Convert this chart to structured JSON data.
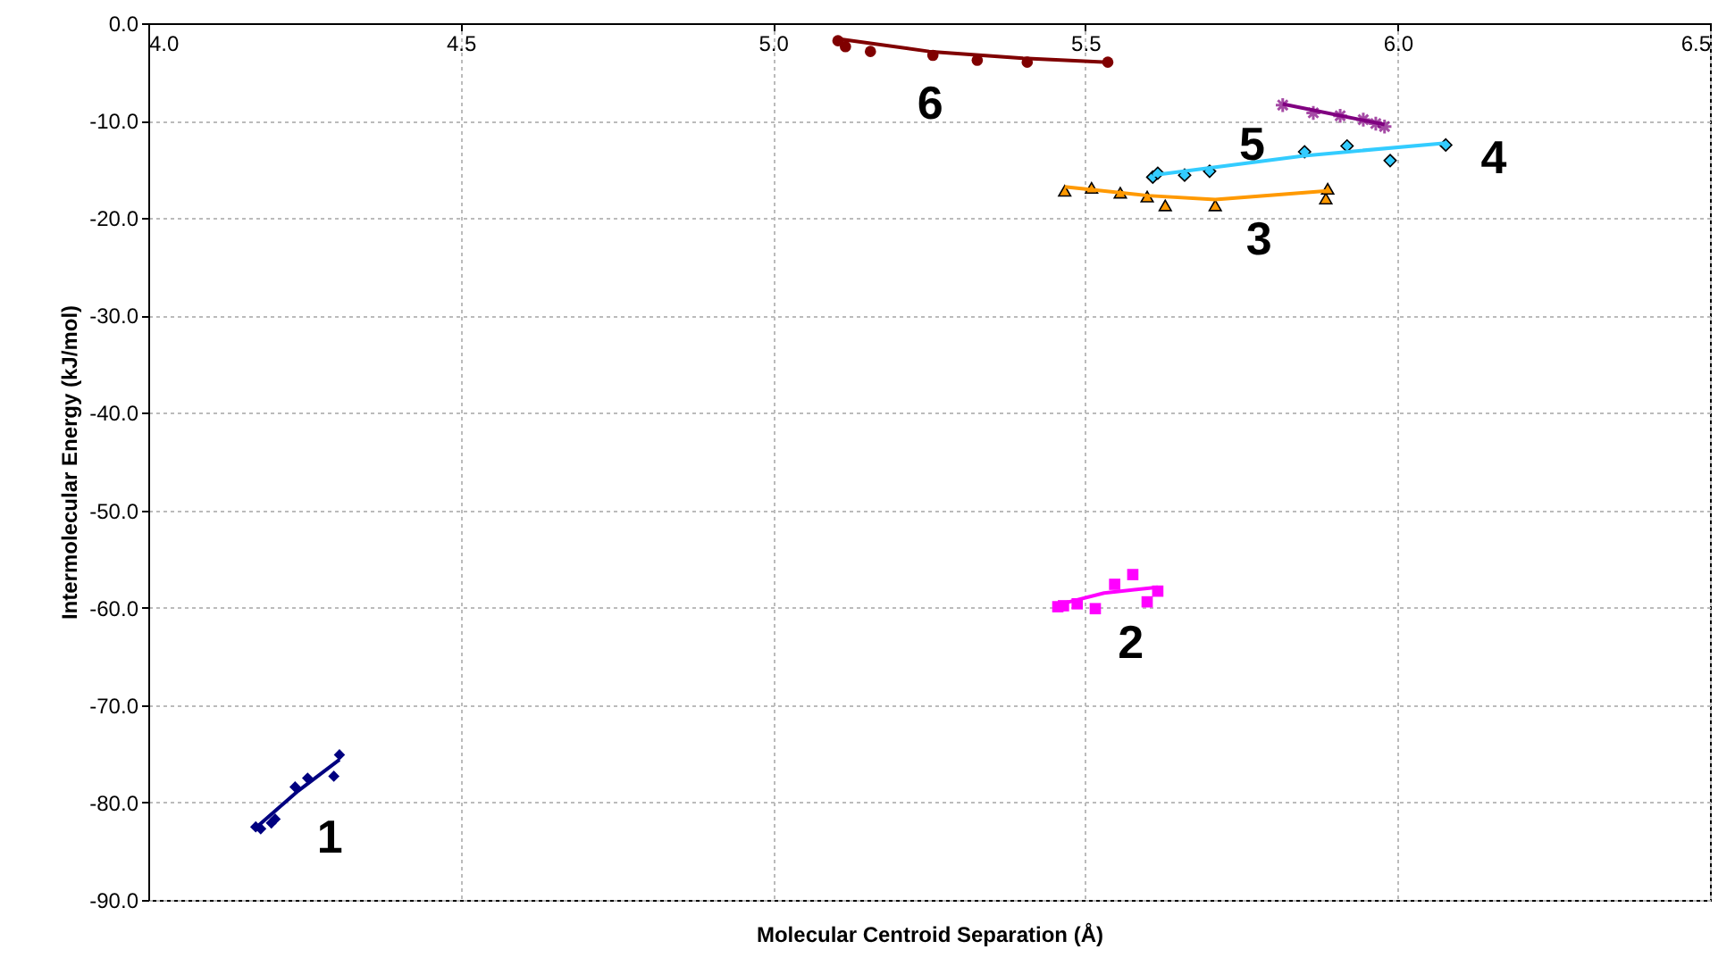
{
  "chart_data": {
    "type": "scatter",
    "xlabel": "Molecular Centroid Separation (Å)",
    "ylabel": "Intermolecular Energy (kJ/mol)",
    "xlim": [
      4.0,
      6.5
    ],
    "xticks": [
      {
        "value": 4.0,
        "label": "4.0"
      },
      {
        "value": 4.5,
        "label": "4.5"
      },
      {
        "value": 5.0,
        "label": "5.0"
      },
      {
        "value": 5.5,
        "label": "5.5"
      },
      {
        "value": 6.0,
        "label": "6.0"
      },
      {
        "value": 6.5,
        "label": "6.5"
      }
    ],
    "ylim": [
      -90,
      0
    ],
    "yticks": [
      {
        "value": -90,
        "label": "-90.0"
      },
      {
        "value": -80,
        "label": "-80.0"
      },
      {
        "value": -70,
        "label": "-70.0"
      },
      {
        "value": -60,
        "label": "-60.0"
      },
      {
        "value": -50,
        "label": "-50.0"
      },
      {
        "value": -40,
        "label": "-40.0"
      },
      {
        "value": -30,
        "label": "-30.0"
      },
      {
        "value": -20,
        "label": "-20.0"
      },
      {
        "value": -10,
        "label": "-10.0"
      },
      {
        "value": 0,
        "label": "0.0"
      }
    ],
    "grid": true,
    "series": [
      {
        "name": "1",
        "marker": "diamond",
        "color": "#000080",
        "x": [
          4.172,
          4.18,
          4.197,
          4.203,
          4.235,
          4.255,
          4.297,
          4.306
        ],
        "values": [
          -82.5,
          -82.7,
          -82.1,
          -81.7,
          -78.4,
          -77.5,
          -77.3,
          -75.1
        ]
      },
      {
        "type": "line",
        "marker": "none",
        "color": "#000080",
        "x": [
          4.172,
          4.24,
          4.306
        ],
        "values": [
          -82.6,
          -78.8,
          -75.6
        ]
      },
      {
        "name": "2",
        "marker": "square",
        "color": "#ff00ff",
        "x": [
          5.456,
          5.465,
          5.487,
          5.516,
          5.547,
          5.576,
          5.599,
          5.616
        ],
        "values": [
          -59.9,
          -59.8,
          -59.6,
          -60.1,
          -57.6,
          -56.6,
          -59.4,
          -58.3
        ]
      },
      {
        "type": "line",
        "marker": "none",
        "color": "#ff00ff",
        "x": [
          5.456,
          5.53,
          5.616
        ],
        "values": [
          -59.7,
          -58.5,
          -57.9
        ]
      },
      {
        "name": "3",
        "marker": "triangle",
        "color": "#ff9900",
        "x": [
          5.467,
          5.51,
          5.556,
          5.599,
          5.628,
          5.708,
          5.885,
          5.888
        ],
        "values": [
          -17.2,
          -16.9,
          -17.4,
          -17.8,
          -18.7,
          -18.7,
          -18.0,
          -17.0
        ]
      },
      {
        "type": "line",
        "marker": "none",
        "color": "#ff9900",
        "x": [
          5.467,
          5.6,
          5.708,
          5.888
        ],
        "values": [
          -16.8,
          -17.7,
          -18.1,
          -17.2
        ]
      },
      {
        "name": "4",
        "marker": "diamond",
        "color": "#33ccff",
        "x": [
          5.608,
          5.616,
          5.659,
          5.699,
          5.851,
          5.919,
          5.988,
          6.077
        ],
        "values": [
          -15.8,
          -15.4,
          -15.6,
          -15.2,
          -13.2,
          -12.6,
          -14.1,
          -12.5
        ]
      },
      {
        "type": "line",
        "marker": "none",
        "color": "#33ccff",
        "x": [
          5.608,
          5.85,
          6.077
        ],
        "values": [
          -15.6,
          -13.6,
          -12.3
        ]
      },
      {
        "name": "5",
        "marker": "cross",
        "color": "#800080",
        "x": [
          5.816,
          5.865,
          5.908,
          5.945,
          5.965,
          5.979
        ],
        "values": [
          -8.4,
          -9.2,
          -9.5,
          -9.9,
          -10.3,
          -10.6
        ]
      },
      {
        "type": "line",
        "marker": "none",
        "color": "#800080",
        "x": [
          5.816,
          5.979
        ],
        "values": [
          -8.3,
          -10.4
        ]
      },
      {
        "name": "6",
        "marker": "circle",
        "color": "#800000",
        "x": [
          5.104,
          5.116,
          5.156,
          5.256,
          5.327,
          5.407,
          5.536
        ],
        "values": [
          -1.8,
          -2.4,
          -2.9,
          -3.3,
          -3.8,
          -4.0,
          -4.0
        ]
      },
      {
        "type": "line",
        "marker": "none",
        "color": "#800000",
        "x": [
          5.104,
          5.25,
          5.4,
          5.536
        ],
        "values": [
          -1.6,
          -2.9,
          -3.6,
          -4.0
        ]
      }
    ]
  }
}
